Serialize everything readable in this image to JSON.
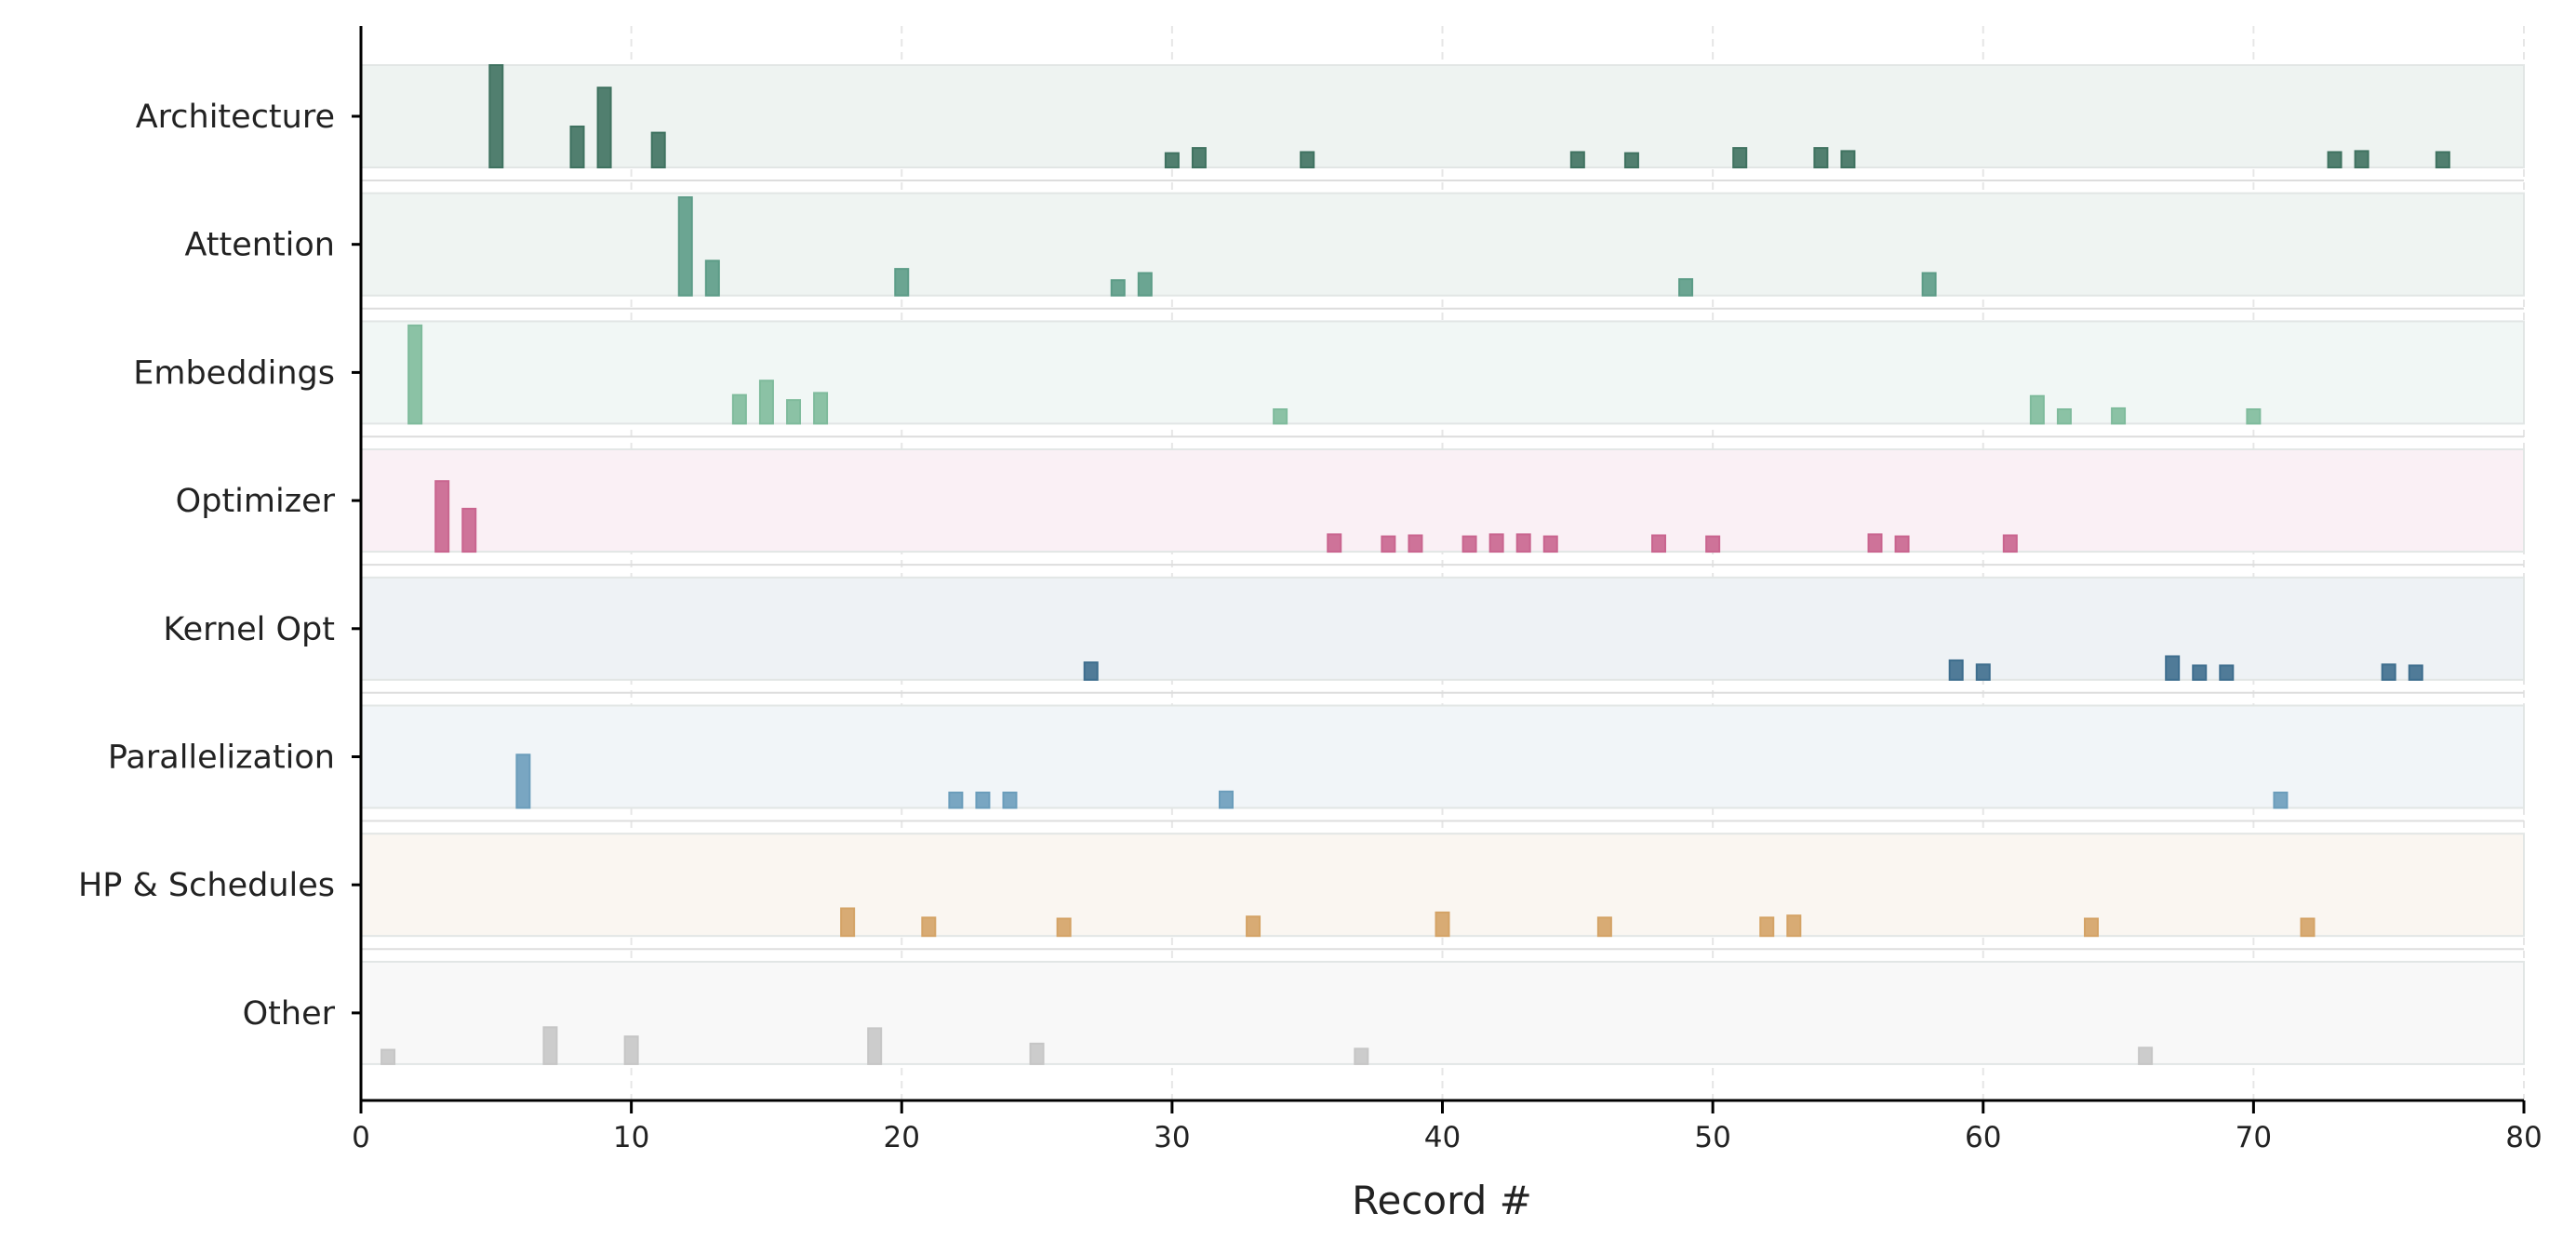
{
  "chart_data": {
    "type": "bar",
    "subtype": "categorical-timeline",
    "title": "",
    "xlabel": "Record #",
    "ylabel": "",
    "xlim": [
      0,
      80
    ],
    "xticks": [
      "0",
      "10",
      "20",
      "30",
      "40",
      "50",
      "60",
      "70",
      "80"
    ],
    "grid": "vertical dashed",
    "legend": "none",
    "note_values": "bar heights relative within each row band (0-1)",
    "series": [
      {
        "name": "Architecture",
        "color": "#3f7260",
        "band_color": "#eef3f1",
        "x": [
          5,
          8,
          9,
          11,
          30,
          31,
          35,
          45,
          47,
          51,
          54,
          55,
          73,
          74,
          77
        ],
        "values": [
          1.0,
          0.4,
          0.78,
          0.34,
          0.14,
          0.19,
          0.15,
          0.15,
          0.14,
          0.19,
          0.19,
          0.16,
          0.15,
          0.16,
          0.15
        ]
      },
      {
        "name": "Attention",
        "color": "#5c9c87",
        "band_color": "#eff4f2",
        "x": [
          12,
          13,
          20,
          28,
          29,
          49,
          58
        ],
        "values": [
          0.96,
          0.34,
          0.26,
          0.15,
          0.22,
          0.16,
          0.22
        ]
      },
      {
        "name": "Embeddings",
        "color": "#7fbb9c",
        "band_color": "#f1f7f5",
        "x": [
          2,
          14,
          15,
          16,
          17,
          34,
          62,
          63,
          65,
          70
        ],
        "values": [
          0.96,
          0.28,
          0.42,
          0.23,
          0.3,
          0.14,
          0.27,
          0.14,
          0.15,
          0.14
        ]
      },
      {
        "name": "Optimizer",
        "color": "#c9658f",
        "band_color": "#faf0f5",
        "x": [
          3,
          4,
          36,
          38,
          39,
          41,
          42,
          43,
          44,
          48,
          50,
          56,
          57,
          61
        ],
        "values": [
          0.69,
          0.42,
          0.17,
          0.15,
          0.16,
          0.15,
          0.17,
          0.17,
          0.15,
          0.16,
          0.15,
          0.17,
          0.15,
          0.16
        ]
      },
      {
        "name": "Kernel Opt",
        "color": "#3e6e8e",
        "band_color": "#eef2f5",
        "x": [
          27,
          59,
          60,
          67,
          68,
          69,
          75,
          76
        ],
        "values": [
          0.17,
          0.19,
          0.15,
          0.23,
          0.14,
          0.14,
          0.15,
          0.14
        ]
      },
      {
        "name": "Parallelization",
        "color": "#6b9dbb",
        "band_color": "#f1f5f8",
        "x": [
          6,
          22,
          23,
          24,
          32,
          71
        ],
        "values": [
          0.52,
          0.15,
          0.15,
          0.15,
          0.16,
          0.15
        ]
      },
      {
        "name": "HP & Schedules",
        "color": "#d4a366",
        "band_color": "#faf6f1",
        "x": [
          18,
          21,
          26,
          33,
          40,
          46,
          52,
          53,
          64,
          72
        ],
        "values": [
          0.27,
          0.18,
          0.17,
          0.19,
          0.23,
          0.18,
          0.18,
          0.2,
          0.17,
          0.17
        ]
      },
      {
        "name": "Other",
        "color": "#c6c6c6",
        "band_color": "#f8f8f8",
        "x": [
          1,
          7,
          10,
          19,
          25,
          37,
          66
        ],
        "values": [
          0.14,
          0.36,
          0.27,
          0.35,
          0.2,
          0.15,
          0.16
        ]
      }
    ]
  }
}
